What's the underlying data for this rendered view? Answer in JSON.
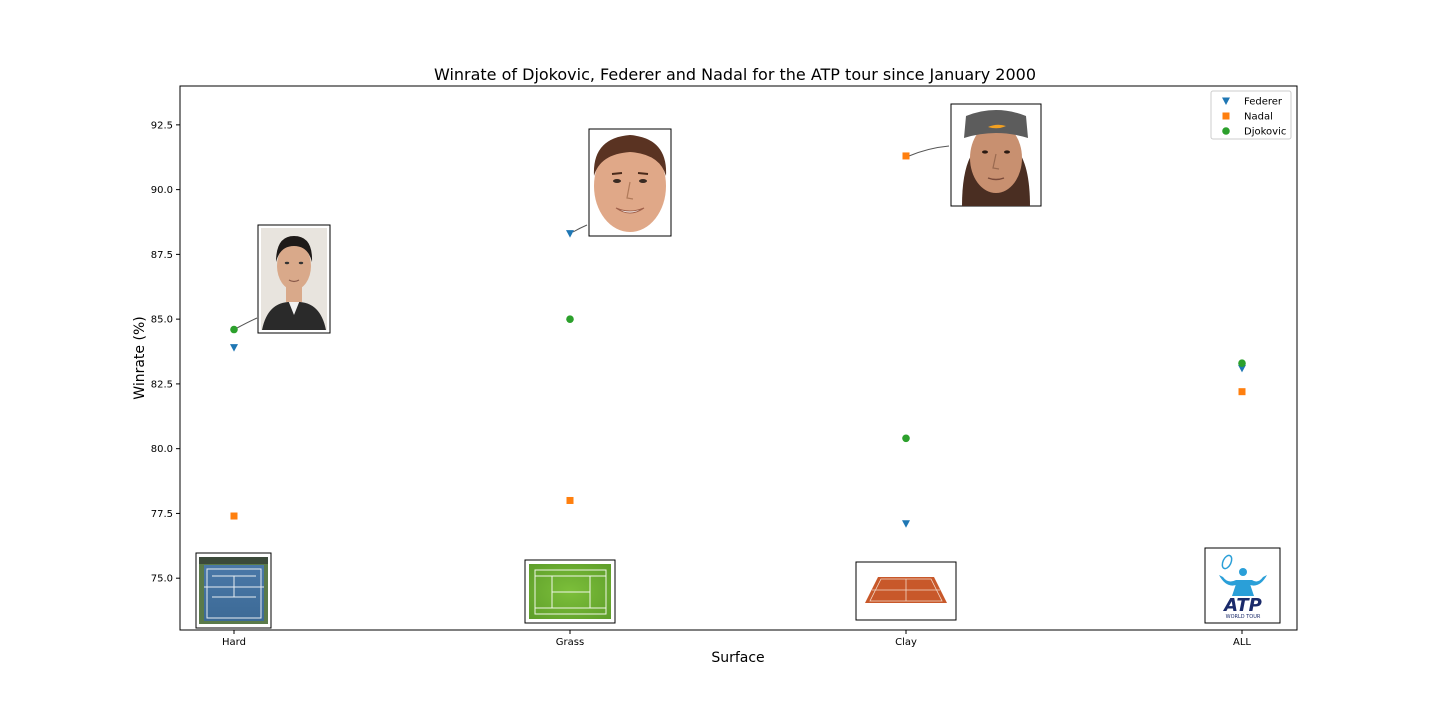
{
  "chart_data": {
    "type": "scatter",
    "title": "Winrate of Djokovic, Federer and Nadal for the ATP tour since January 2000",
    "xlabel": "Surface",
    "ylabel": "Winrate (%)",
    "categories": [
      "Hard",
      "Grass",
      "Clay",
      "ALL"
    ],
    "ylim": [
      73.0,
      94.0
    ],
    "yticks": [
      "75.0",
      "77.5",
      "80.0",
      "82.5",
      "85.0",
      "87.5",
      "90.0",
      "92.5"
    ],
    "grid": false,
    "legend_position": "top-right",
    "series": [
      {
        "name": "Federer",
        "marker": "triangle-down",
        "color": "#1f77b4",
        "values": [
          83.9,
          88.3,
          77.1,
          83.1
        ]
      },
      {
        "name": "Nadal",
        "marker": "square",
        "color": "#ff7f0e",
        "values": [
          77.4,
          78.0,
          91.3,
          82.2
        ]
      },
      {
        "name": "Djokovic",
        "marker": "circle",
        "color": "#2ca02c",
        "values": [
          84.6,
          85.0,
          80.4,
          83.3
        ]
      }
    ],
    "annotations": [
      {
        "kind": "player-photo",
        "player": "Djokovic",
        "category": "Hard"
      },
      {
        "kind": "player-photo",
        "player": "Federer",
        "category": "Grass"
      },
      {
        "kind": "player-photo",
        "player": "Nadal",
        "category": "Clay"
      }
    ],
    "surface_images": [
      {
        "category": "Hard",
        "icon": "hard-court-icon"
      },
      {
        "category": "Grass",
        "icon": "grass-court-icon"
      },
      {
        "category": "Clay",
        "icon": "clay-court-icon"
      },
      {
        "category": "ALL",
        "icon": "atp-world-tour-logo"
      }
    ]
  }
}
